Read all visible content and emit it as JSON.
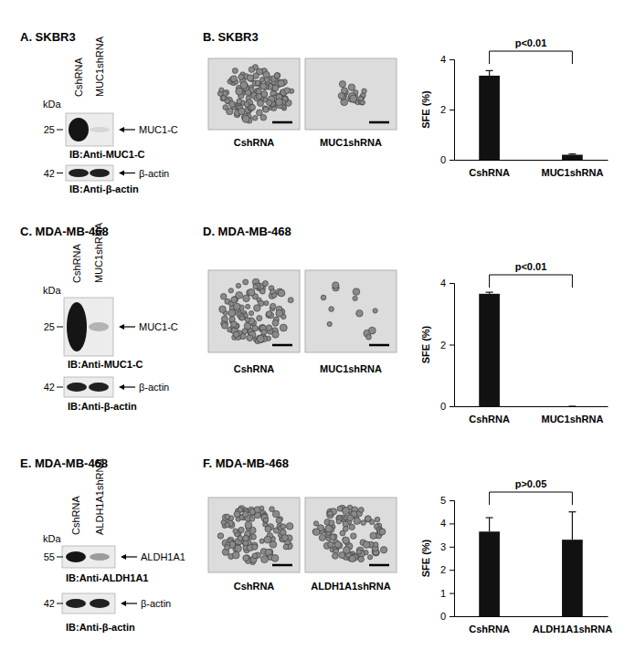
{
  "figure": {
    "panels": [
      {
        "label": "A. SKBR3",
        "lanes": [
          "CshRNA",
          "MUC1shRNA"
        ],
        "kda": "kDa",
        "blots": [
          {
            "kda_marker": 25,
            "band": "MUC1-C",
            "antibody": "IB:Anti-MUC1-C"
          },
          {
            "kda_marker": 42,
            "band": "β-actin",
            "antibody": "IB:Anti-β-actin"
          }
        ]
      },
      {
        "label": "B. SKBR3",
        "images": [
          "CshRNA",
          "MUC1shRNA"
        ]
      },
      {
        "label": "C. MDA-MB-468",
        "lanes": [
          "CshRNA",
          "MUC1shRNA"
        ],
        "kda": "kDa",
        "blots": [
          {
            "kda_marker": 25,
            "band": "MUC1-C",
            "antibody": "IB:Anti-MUC1-C"
          },
          {
            "kda_marker": 42,
            "band": "β-actin",
            "antibody": "IB:Anti-β-actin"
          }
        ]
      },
      {
        "label": "D. MDA-MB-468",
        "images": [
          "CshRNA",
          "MUC1shRNA"
        ]
      },
      {
        "label": "E. MDA-MB-468",
        "lanes": [
          "CshRNA",
          "ALDH1A1shRNA"
        ],
        "kda": "kDa",
        "blots": [
          {
            "kda_marker": 55,
            "band": "ALDH1A1",
            "antibody": "IB:Anti-ALDH1A1"
          },
          {
            "kda_marker": 42,
            "band": "β-actin",
            "antibody": "IB:Anti-β-actin"
          }
        ]
      },
      {
        "label": "F. MDA-MB-468",
        "images": [
          "CshRNA",
          "ALDH1A1shRNA"
        ]
      }
    ]
  },
  "chart_data": [
    {
      "type": "bar",
      "y_label": "SFE (%)",
      "categories": [
        "CshRNA",
        "MUC1shRNA"
      ],
      "values": [
        3.35,
        0.2
      ],
      "errors": [
        0.2,
        0.03
      ],
      "color": "#111111",
      "ylim": [
        0,
        4
      ],
      "yticks": [
        0,
        2,
        4
      ],
      "annotations": [
        "p<0.01"
      ]
    },
    {
      "type": "bar",
      "y_label": "SFE (%)",
      "categories": [
        "CshRNA",
        "MUC1shRNA"
      ],
      "values": [
        3.65,
        0
      ],
      "errors": [
        0.05,
        0
      ],
      "color": "#111111",
      "ylim": [
        0,
        4
      ],
      "yticks": [
        0,
        2,
        4
      ],
      "annotations": [
        "p<0.01"
      ]
    },
    {
      "type": "bar",
      "y_label": "SFE (%)",
      "categories": [
        "CshRNA",
        "ALDH1A1shRNA"
      ],
      "values": [
        3.65,
        3.3
      ],
      "errors": [
        0.6,
        1.2
      ],
      "color": "#111111",
      "ylim": [
        0,
        5
      ],
      "yticks": [
        0,
        1,
        2,
        3,
        4,
        5
      ],
      "annotations": [
        "p>0.05"
      ]
    }
  ]
}
